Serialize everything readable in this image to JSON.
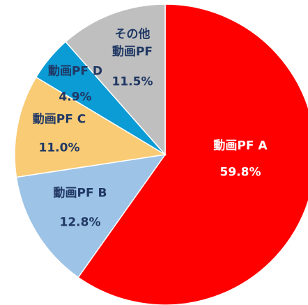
{
  "chart_data": {
    "type": "pie",
    "categories": [
      "動画PF A",
      "動画PF B",
      "動画PF C",
      "動画PF D",
      "その他\n動画PF"
    ],
    "values": [
      59.8,
      12.8,
      11.0,
      4.9,
      11.5
    ],
    "value_labels": [
      "59.8%",
      "12.8%",
      "11.0%",
      "4.9%",
      "11.5%"
    ],
    "colors": [
      "#ff0000",
      "#9dc3e6",
      "#f9cb75",
      "#0b9bd5",
      "#bfbfbf"
    ],
    "start_angle": 0,
    "direction": "clockwise"
  }
}
